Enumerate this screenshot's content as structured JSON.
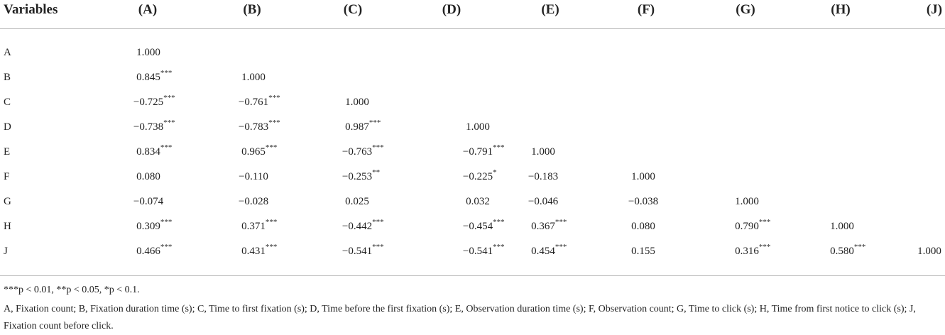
{
  "table": {
    "header": {
      "label": "Variables",
      "columns": [
        "(A)",
        "(B)",
        "(C)",
        "(D)",
        "(E)",
        "(F)",
        "(G)",
        "(H)",
        "(J)"
      ]
    },
    "rows": [
      {
        "label": "A",
        "cells": [
          {
            "value": "1.000",
            "sig": null
          }
        ]
      },
      {
        "label": "B",
        "cells": [
          {
            "value": "0.845",
            "sig": "***"
          },
          {
            "value": "1.000",
            "sig": null
          }
        ]
      },
      {
        "label": "C",
        "cells": [
          {
            "value": "−0.725",
            "sig": "***"
          },
          {
            "value": "−0.761",
            "sig": "***"
          },
          {
            "value": "1.000",
            "sig": null
          }
        ]
      },
      {
        "label": "D",
        "cells": [
          {
            "value": "−0.738",
            "sig": "***"
          },
          {
            "value": "−0.783",
            "sig": "***"
          },
          {
            "value": "0.987",
            "sig": "***"
          },
          {
            "value": "1.000",
            "sig": null
          }
        ]
      },
      {
        "label": "E",
        "cells": [
          {
            "value": "0.834",
            "sig": "***"
          },
          {
            "value": "0.965",
            "sig": "***"
          },
          {
            "value": "−0.763",
            "sig": "***"
          },
          {
            "value": "−0.791",
            "sig": "***"
          },
          {
            "value": "1.000",
            "sig": null
          }
        ]
      },
      {
        "label": "F",
        "cells": [
          {
            "value": "0.080",
            "sig": null
          },
          {
            "value": "−0.110",
            "sig": null
          },
          {
            "value": "−0.253",
            "sig": "**"
          },
          {
            "value": "−0.225",
            "sig": "*"
          },
          {
            "value": "−0.183",
            "sig": null
          },
          {
            "value": "1.000",
            "sig": null
          }
        ]
      },
      {
        "label": "G",
        "cells": [
          {
            "value": "−0.074",
            "sig": null
          },
          {
            "value": "−0.028",
            "sig": null
          },
          {
            "value": "0.025",
            "sig": null
          },
          {
            "value": "0.032",
            "sig": null
          },
          {
            "value": "−0.046",
            "sig": null
          },
          {
            "value": "−0.038",
            "sig": null
          },
          {
            "value": "1.000",
            "sig": null
          }
        ]
      },
      {
        "label": "H",
        "cells": [
          {
            "value": "0.309",
            "sig": "***"
          },
          {
            "value": "0.371",
            "sig": "***"
          },
          {
            "value": "−0.442",
            "sig": "***"
          },
          {
            "value": "−0.454",
            "sig": "***"
          },
          {
            "value": "0.367",
            "sig": "***"
          },
          {
            "value": "0.080",
            "sig": null
          },
          {
            "value": "0.790",
            "sig": "***"
          },
          {
            "value": "1.000",
            "sig": null
          }
        ]
      },
      {
        "label": "J",
        "cells": [
          {
            "value": "0.466",
            "sig": "***"
          },
          {
            "value": "0.431",
            "sig": "***"
          },
          {
            "value": "−0.541",
            "sig": "***"
          },
          {
            "value": "−0.541",
            "sig": "***"
          },
          {
            "value": "0.454",
            "sig": "***"
          },
          {
            "value": "0.155",
            "sig": null
          },
          {
            "value": "0.316",
            "sig": "***"
          },
          {
            "value": "0.580",
            "sig": "***"
          },
          {
            "value": "1.000",
            "sig": null
          }
        ]
      }
    ],
    "footnotes": [
      "***p < 0.01, **p < 0.05, *p < 0.1.",
      "A, Fixation count; B, Fixation duration time (s); C, Time to first fixation (s); D, Time before the first fixation (s); E, Observation duration time (s); F, Observation count; G, Time to click (s); H, Time from first notice to click (s); J, Fixation count before click."
    ]
  }
}
